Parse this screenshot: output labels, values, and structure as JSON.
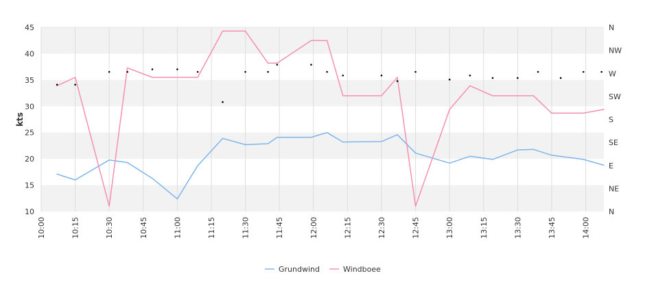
{
  "chart_data": {
    "type": "line",
    "ylabel": "kts",
    "ylim": [
      10,
      45
    ],
    "y_ticks": [
      10,
      15,
      20,
      25,
      30,
      35,
      40,
      45
    ],
    "xlim": [
      "10:00",
      "14:08"
    ],
    "x_ticks": [
      "10:00",
      "10:15",
      "10:30",
      "10:45",
      "11:00",
      "11:15",
      "11:30",
      "11:45",
      "12:00",
      "12:15",
      "12:30",
      "12:45",
      "13:00",
      "13:15",
      "13:30",
      "13:45",
      "14:00"
    ],
    "right_axis": {
      "label": "",
      "ticks": [
        "N",
        "NW",
        "W",
        "SW",
        "S",
        "SE",
        "E",
        "NE",
        "N"
      ],
      "range_degrees": [
        0,
        360
      ]
    },
    "grid": "horizontal-bands",
    "legend_position": "bottom-center",
    "series": [
      {
        "name": "Grundwind",
        "color": "#7cb5ec",
        "x": [
          "10:07",
          "10:15",
          "10:30",
          "10:38",
          "10:49",
          "11:00",
          "11:09",
          "11:20",
          "11:30",
          "11:40",
          "11:44",
          "11:59",
          "12:06",
          "12:13",
          "12:30",
          "12:37",
          "12:45",
          "13:00",
          "13:09",
          "13:19",
          "13:30",
          "13:37",
          "13:45",
          "13:59",
          "14:08"
        ],
        "values": [
          17.1,
          16.0,
          19.8,
          19.3,
          16.3,
          12.4,
          18.7,
          23.9,
          22.7,
          22.9,
          24.1,
          24.1,
          25.0,
          23.2,
          23.3,
          24.6,
          21.1,
          19.2,
          20.5,
          19.9,
          21.7,
          21.8,
          20.7,
          19.9,
          18.8
        ]
      },
      {
        "name": "Windboee",
        "color": "#f48fb1",
        "x": [
          "10:07",
          "10:15",
          "10:30",
          "10:38",
          "10:49",
          "11:00",
          "11:09",
          "11:20",
          "11:30",
          "11:40",
          "11:44",
          "11:59",
          "12:06",
          "12:13",
          "12:30",
          "12:37",
          "12:45",
          "13:00",
          "13:09",
          "13:19",
          "13:30",
          "13:37",
          "13:45",
          "13:59",
          "14:08"
        ],
        "values": [
          33.9,
          35.5,
          11.0,
          37.3,
          35.5,
          35.5,
          35.5,
          44.3,
          44.3,
          38.2,
          38.2,
          42.5,
          42.5,
          32.0,
          32.0,
          35.5,
          11.0,
          29.4,
          33.9,
          32.0,
          32.0,
          32.0,
          28.7,
          28.7,
          29.4
        ]
      },
      {
        "name": "",
        "kind": "direction-dots",
        "color": "#000000",
        "x": [
          "10:07",
          "10:15",
          "10:30",
          "10:38",
          "10:49",
          "11:00",
          "11:09",
          "11:20",
          "11:30",
          "11:40",
          "11:44",
          "11:59",
          "12:06",
          "12:13",
          "12:30",
          "12:37",
          "12:45",
          "13:00",
          "13:09",
          "13:19",
          "13:30",
          "13:39",
          "13:49",
          "13:59",
          "14:07"
        ],
        "values_degrees": [
          248,
          248,
          273,
          273,
          278,
          278,
          273,
          214,
          273,
          273,
          287,
          287,
          273,
          266,
          266,
          255,
          273,
          258,
          266,
          261,
          261,
          273,
          261,
          273,
          273
        ]
      }
    ]
  }
}
